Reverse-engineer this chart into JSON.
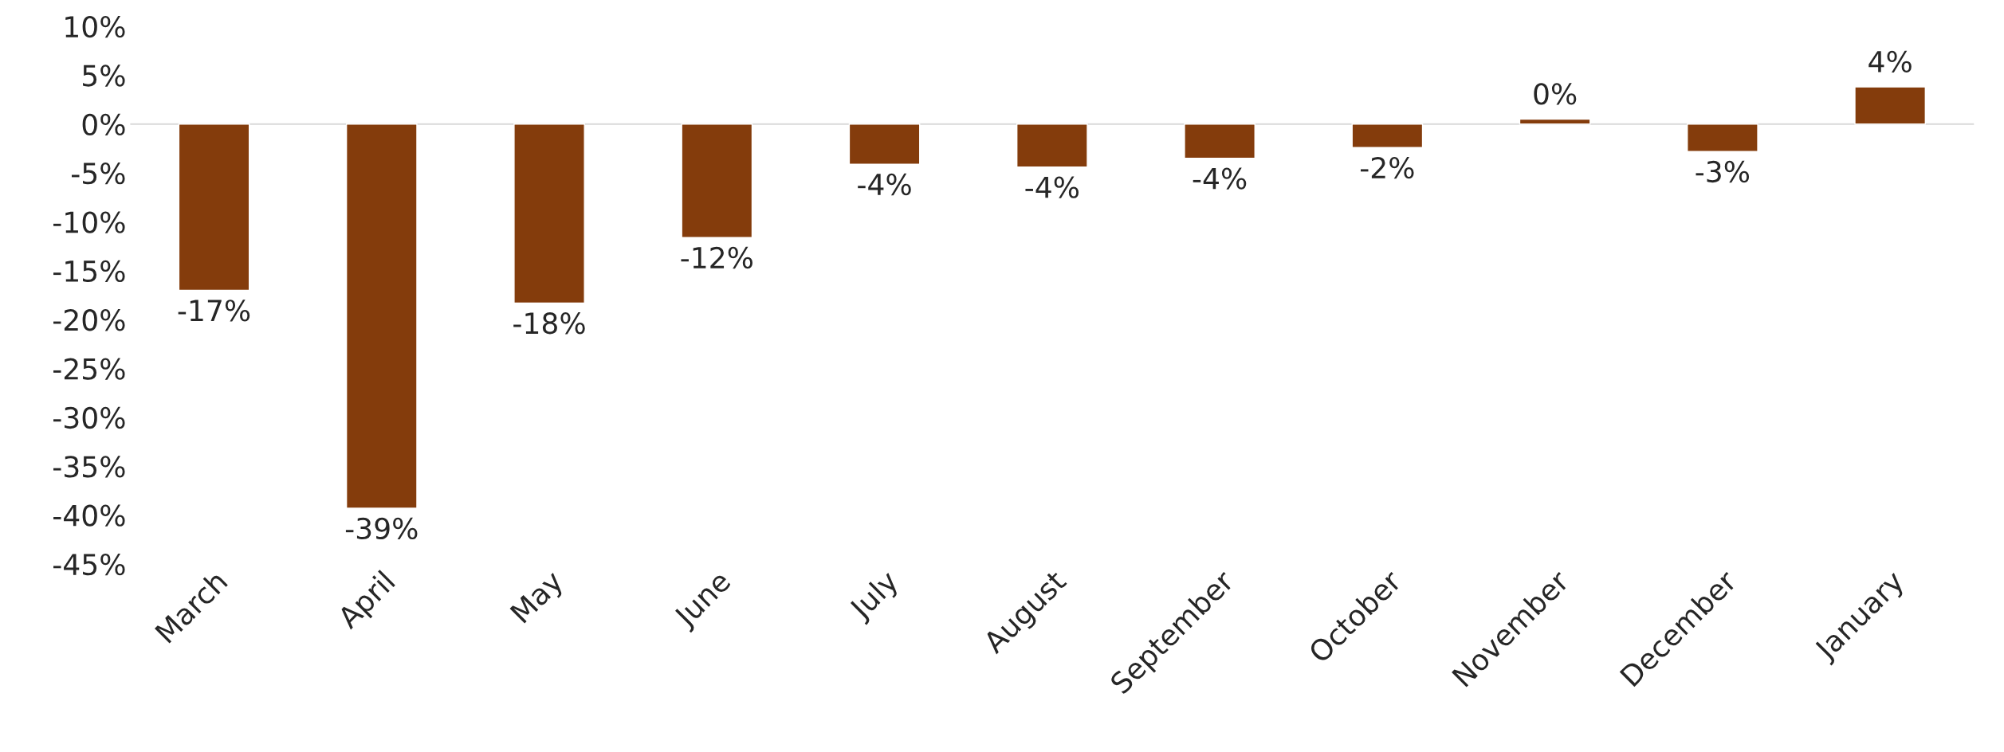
{
  "chart_data": {
    "type": "bar",
    "categories": [
      "March",
      "April",
      "May",
      "June",
      "July",
      "August",
      "September",
      "October",
      "November",
      "December",
      "January"
    ],
    "values": [
      -17,
      -39.3,
      -18.3,
      -11.6,
      -4.1,
      -4.4,
      -3.5,
      -2.4,
      0.5,
      -2.8,
      3.8
    ],
    "value_labels": [
      "-17%",
      "-39%",
      "-18%",
      "-12%",
      "-4%",
      "-4%",
      "-4%",
      "-2%",
      "0%",
      "-3%",
      "4%"
    ],
    "color": "#843c0c",
    "ylim": [
      -45,
      10
    ],
    "yticks": [
      {
        "value": 10,
        "label": "10%"
      },
      {
        "value": 5,
        "label": "5%"
      },
      {
        "value": 0,
        "label": "0%"
      },
      {
        "value": -5,
        "label": "-5%"
      },
      {
        "value": -10,
        "label": "-10%"
      },
      {
        "value": -15,
        "label": "-15%"
      },
      {
        "value": -20,
        "label": "-20%"
      },
      {
        "value": -25,
        "label": "-25%"
      },
      {
        "value": -30,
        "label": "-30%"
      },
      {
        "value": -35,
        "label": "-35%"
      },
      {
        "value": -40,
        "label": "-40%"
      },
      {
        "value": -45,
        "label": "-45%"
      }
    ],
    "tick_labels": true
  }
}
